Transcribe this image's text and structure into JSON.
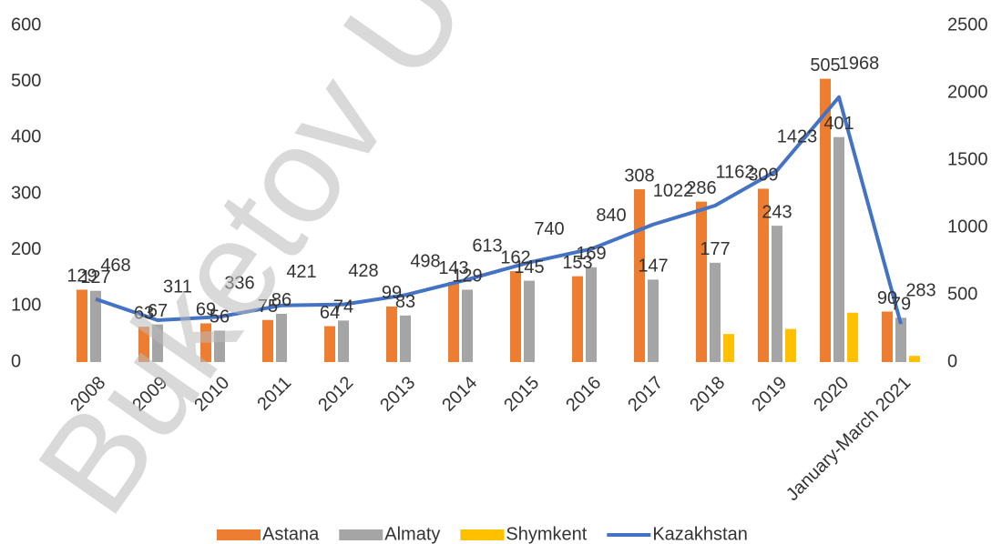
{
  "chart_data": {
    "type": "bar_line",
    "watermark": "Buketov Uni",
    "categories": [
      "2008",
      "2009",
      "2010",
      "2011",
      "2012",
      "2013",
      "2014",
      "2015",
      "2016",
      "2017",
      "2018",
      "2019",
      "2020",
      "January-March 2021"
    ],
    "series": [
      {
        "name": "Astana",
        "color": "#ed7d31",
        "type": "bar",
        "show_labels": true,
        "values": [
          129,
          63,
          69,
          75,
          64,
          99,
          143,
          162,
          153,
          308,
          286,
          309,
          505,
          90
        ]
      },
      {
        "name": "Almaty",
        "color": "#a5a5a5",
        "type": "bar",
        "show_labels": true,
        "values": [
          127,
          67,
          56,
          86,
          74,
          83,
          129,
          145,
          169,
          147,
          177,
          243,
          401,
          79
        ]
      },
      {
        "name": "Shymkent",
        "color": "#ffc000",
        "type": "bar",
        "show_labels": false,
        "values": [
          null,
          null,
          null,
          null,
          null,
          null,
          null,
          null,
          null,
          null,
          50,
          59,
          88,
          11
        ]
      },
      {
        "name": "Kazakhstan",
        "color": "#4472c4",
        "type": "line",
        "axis": "y2",
        "show_labels": true,
        "values": [
          468,
          311,
          336,
          421,
          428,
          498,
          613,
          740,
          840,
          1022,
          1162,
          1423,
          1968,
          283
        ]
      }
    ],
    "ylim": [
      0,
      600
    ],
    "yticks": [
      0,
      100,
      200,
      300,
      400,
      500,
      600
    ],
    "y2lim": [
      0,
      2500
    ],
    "y2ticks": [
      0,
      500,
      1000,
      1500,
      2000,
      2500
    ],
    "legend": "bottom"
  }
}
